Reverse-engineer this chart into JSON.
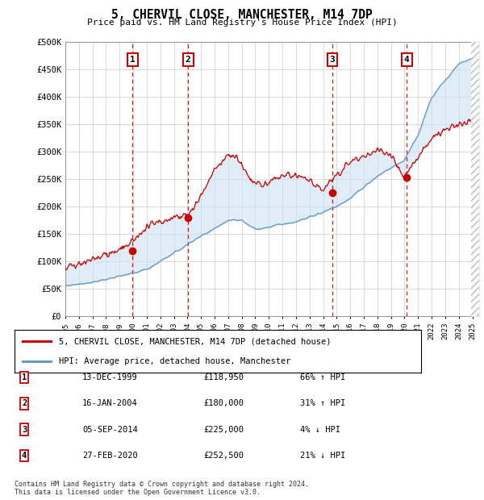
{
  "title": "5, CHERVIL CLOSE, MANCHESTER, M14 7DP",
  "subtitle": "Price paid vs. HM Land Registry's House Price Index (HPI)",
  "footer": "Contains HM Land Registry data © Crown copyright and database right 2024.\nThis data is licensed under the Open Government Licence v3.0.",
  "legend_red": "5, CHERVIL CLOSE, MANCHESTER, M14 7DP (detached house)",
  "legend_blue": "HPI: Average price, detached house, Manchester",
  "sales": [
    {
      "num": 1,
      "label_date": "13-DEC-1999",
      "price": 118950,
      "price_label": "£118,950",
      "pct": "66%",
      "dir": "↑",
      "x_year": 1999.95
    },
    {
      "num": 2,
      "label_date": "16-JAN-2004",
      "price": 180000,
      "price_label": "£180,000",
      "pct": "31%",
      "dir": "↑",
      "x_year": 2004.04
    },
    {
      "num": 3,
      "label_date": "05-SEP-2014",
      "price": 225000,
      "price_label": "£225,000",
      "pct": "4%",
      "dir": "↓",
      "x_year": 2014.68
    },
    {
      "num": 4,
      "label_date": "27-FEB-2020",
      "price": 252500,
      "price_label": "£252,500",
      "pct": "21%",
      "dir": "↓",
      "x_year": 2020.16
    }
  ],
  "xmin": 1995.0,
  "xmax": 2025.5,
  "ymin": 0,
  "ymax": 500000,
  "yticks": [
    0,
    50000,
    100000,
    150000,
    200000,
    250000,
    300000,
    350000,
    400000,
    450000,
    500000
  ],
  "ytick_labels": [
    "£0",
    "£50K",
    "£100K",
    "£150K",
    "£200K",
    "£250K",
    "£300K",
    "£350K",
    "£400K",
    "£450K",
    "£500K"
  ],
  "background_color": "#ffffff",
  "grid_color": "#cccccc",
  "red_color": "#cc0000",
  "blue_color": "#6699cc",
  "shade_color": "#cce0f0",
  "hatch_color": "#dddddd"
}
